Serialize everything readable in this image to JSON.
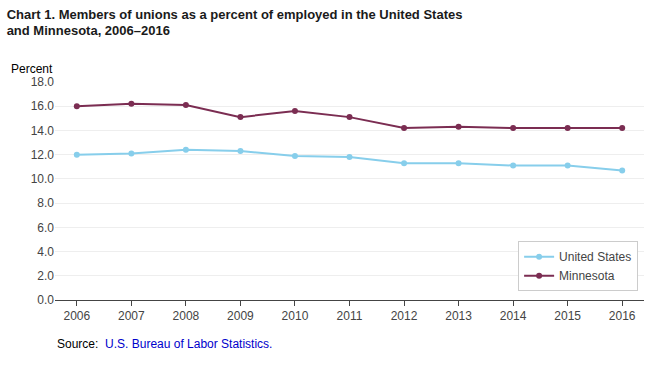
{
  "chart_data": {
    "type": "line",
    "title": "Chart 1. Members of unions as a percent of employed in the United States and Minnesota, 2006–2016",
    "ylabel": "Percent",
    "x": [
      2006,
      2007,
      2008,
      2009,
      2010,
      2011,
      2012,
      2013,
      2014,
      2015,
      2016
    ],
    "series": [
      {
        "name": "United States",
        "color": "#87CEEB",
        "marker": "circle",
        "values": [
          12.0,
          12.1,
          12.4,
          12.3,
          11.9,
          11.8,
          11.3,
          11.3,
          11.1,
          11.1,
          10.7
        ]
      },
      {
        "name": "Minnesota",
        "color": "#7B2D52",
        "marker": "circle",
        "values": [
          16.0,
          16.2,
          16.1,
          15.1,
          15.6,
          15.1,
          14.2,
          14.3,
          14.2,
          14.2,
          14.2
        ]
      }
    ],
    "xlim": [
      2005.6,
      2016.4
    ],
    "xticks": [
      2006,
      2007,
      2008,
      2009,
      2010,
      2011,
      2012,
      2013,
      2014,
      2015,
      2016
    ],
    "ylim": [
      0.0,
      18.0
    ],
    "yticks": [
      {
        "value": 0.0,
        "label": "0.0"
      },
      {
        "value": 2.0,
        "label": "2.0"
      },
      {
        "value": 4.0,
        "label": "4.0"
      },
      {
        "value": 6.0,
        "label": "6.0"
      },
      {
        "value": 8.0,
        "label": "8.0"
      },
      {
        "value": 10.0,
        "label": "10.0"
      },
      {
        "value": 12.0,
        "label": "12.0"
      },
      {
        "value": 14.0,
        "label": "14.0"
      },
      {
        "value": 16.0,
        "label": "16.0"
      },
      {
        "value": 18.0,
        "label": "18.0"
      }
    ],
    "grid": true,
    "legend": "lower right",
    "annotations": [
      {
        "text": "Source:  ",
        "color": "#000000"
      },
      {
        "text": "U.S. Bureau of Labor Statistics.",
        "color": "#0000CC"
      }
    ]
  }
}
